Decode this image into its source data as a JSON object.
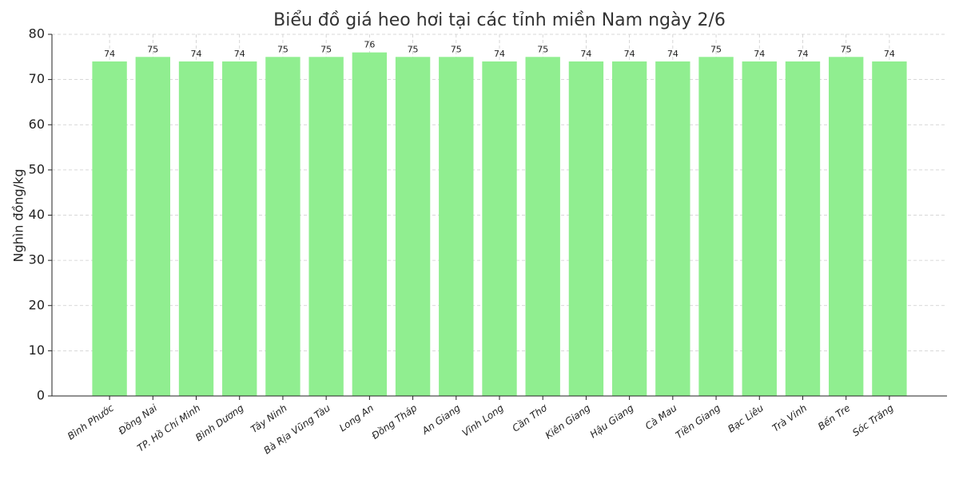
{
  "chart_data": {
    "type": "bar",
    "title": "Biểu đồ giá heo hơi tại các tỉnh miền Nam ngày 2/6",
    "y_label": "Nghìn đồng/kg",
    "categories": [
      "Bình Phước",
      "Đồng Nai",
      "TP. Hồ Chí Minh",
      "Bình Dương",
      "Tây Ninh",
      "Bà Rịa  Vũng Tàu",
      "Long An",
      "Đồng Tháp",
      "An Giang",
      "Vĩnh Long",
      "Cần Thơ",
      "Kiên Giang",
      "Hậu Giang",
      "Cà Mau",
      "Tiền Giang",
      "Bạc Liêu",
      "Trà Vinh",
      "Bến Tre",
      "Sóc Trăng"
    ],
    "values": [
      74,
      75,
      74,
      74,
      75,
      75,
      76,
      75,
      75,
      74,
      75,
      74,
      74,
      74,
      75,
      74,
      74,
      75,
      74
    ],
    "color": "#90ee90",
    "ylim": [
      0,
      80
    ],
    "yticks": [
      0,
      10,
      20,
      30,
      40,
      50,
      60,
      70,
      80
    ],
    "grid": true
  }
}
